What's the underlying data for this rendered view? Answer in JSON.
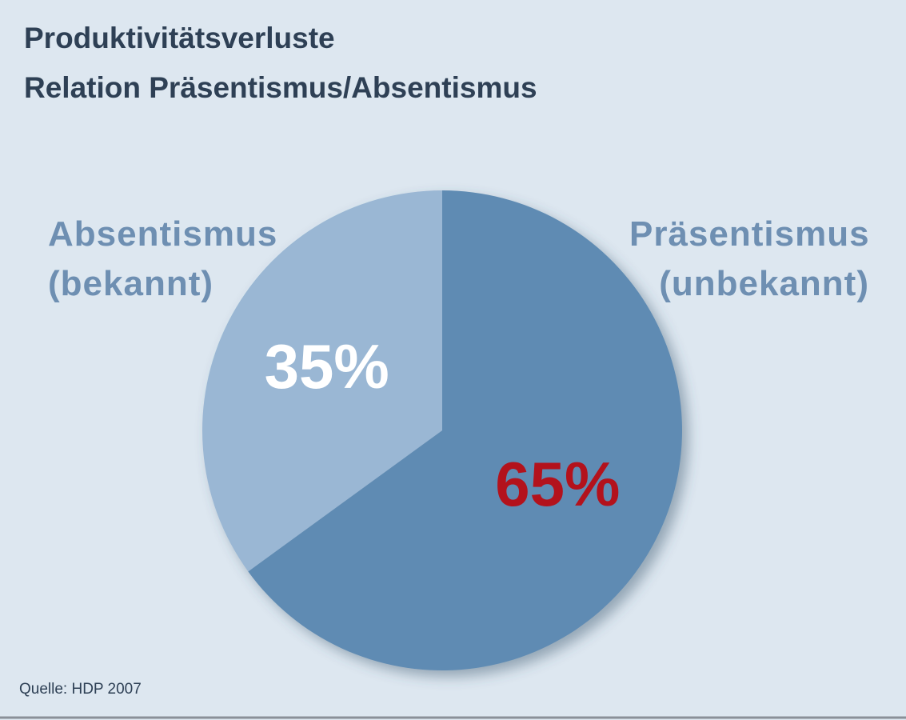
{
  "chart_data": {
    "type": "pie",
    "title": "Produktivitätsverluste",
    "subtitle": "Relation Präsentismus/Absentismus",
    "categories": [
      "Präsentismus (unbekannt)",
      "Absentismus (bekannt)"
    ],
    "values": [
      65,
      35
    ],
    "value_labels": [
      "65%",
      "35%"
    ],
    "colors": [
      "#5f8bb3",
      "#9ab7d4"
    ],
    "value_label_colors": [
      "#b3121c",
      "#ffffff"
    ],
    "source": "Quelle: HDP 2007"
  }
}
